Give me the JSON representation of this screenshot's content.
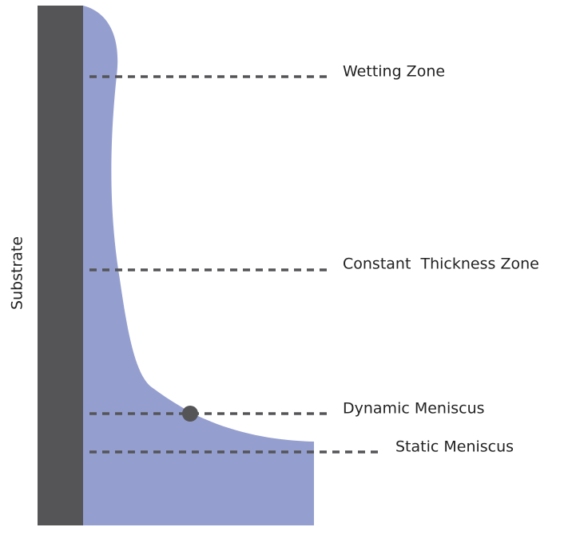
{
  "substrate": {
    "label": "Substrate"
  },
  "zones": [
    {
      "label": "Wetting Zone"
    },
    {
      "label": "Constant  Thickness Zone"
    },
    {
      "label": "Dynamic Meniscus"
    },
    {
      "label": "Static Meniscus"
    }
  ]
}
